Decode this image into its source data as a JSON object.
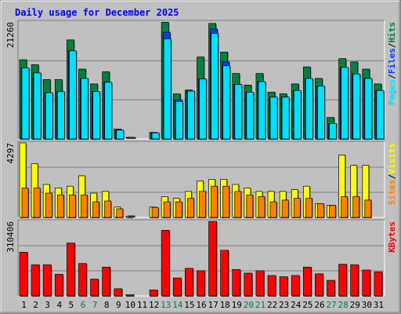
{
  "title": "Daily usage for December 2025",
  "colors": {
    "background": "#c0c0c0",
    "title": "#0000ff",
    "hits": "#008040",
    "files": "#0040ff",
    "pages": "#00e0ff",
    "visits": "#ffff00",
    "sites": "#ff8000",
    "kbytes": "#ff0000",
    "weekend_label": "#008040",
    "day_label": "#000000"
  },
  "chart_data": [
    {
      "type": "bar",
      "panel": "top",
      "ymax_label": "21260",
      "ylim": [
        0,
        21260
      ],
      "grid": true,
      "legend": [
        {
          "text": "Pages",
          "color": "#00e0ff"
        },
        {
          "text": "/",
          "color": "#000000"
        },
        {
          "text": "Files",
          "color": "#0040ff"
        },
        {
          "text": "/",
          "color": "#000000"
        },
        {
          "text": "Hits",
          "color": "#008040"
        }
      ],
      "categories": [
        "1",
        "2",
        "3",
        "4",
        "5",
        "6",
        "7",
        "8",
        "9",
        "10",
        "11",
        "12",
        "13",
        "14",
        "15",
        "16",
        "17",
        "18",
        "19",
        "20",
        "21",
        "22",
        "23",
        "24",
        "25",
        "26",
        "27",
        "28",
        "29",
        "30",
        "31"
      ],
      "series": [
        {
          "name": "Hits",
          "values": [
            14400,
            13500,
            10800,
            10800,
            18000,
            12700,
            10000,
            12200,
            1800,
            100,
            0,
            1200,
            21200,
            8200,
            8900,
            14900,
            21000,
            15800,
            11900,
            9800,
            11900,
            8500,
            8200,
            10000,
            13100,
            11000,
            3900,
            14600,
            14000,
            12700,
            10000
          ]
        },
        {
          "name": "Files",
          "values": [
            12900,
            12000,
            8400,
            8600,
            16000,
            11000,
            8600,
            10300,
            1600,
            80,
            0,
            1100,
            19400,
            7100,
            8700,
            10900,
            20000,
            14000,
            9900,
            8500,
            10400,
            7600,
            7600,
            8800,
            11000,
            9600,
            2800,
            13000,
            11800,
            11000,
            8800
          ]
        },
        {
          "name": "Pages",
          "values": [
            12900,
            12000,
            8400,
            8600,
            16000,
            11000,
            8600,
            10300,
            1600,
            80,
            0,
            1100,
            18200,
            6800,
            8700,
            10900,
            19200,
            13300,
            9900,
            8500,
            10400,
            7600,
            7600,
            8800,
            11000,
            9600,
            2800,
            13000,
            11800,
            11000,
            8800
          ]
        }
      ]
    },
    {
      "type": "bar",
      "panel": "middle",
      "ymax_label": "4297",
      "ylim": [
        0,
        4297
      ],
      "grid": true,
      "legend": [
        {
          "text": "Sites",
          "color": "#ff8000"
        },
        {
          "text": "/",
          "color": "#000000"
        },
        {
          "text": "Visits",
          "color": "#ffff00"
        }
      ],
      "categories": [
        "1",
        "2",
        "3",
        "4",
        "5",
        "6",
        "7",
        "8",
        "9",
        "10",
        "11",
        "12",
        "13",
        "14",
        "15",
        "16",
        "17",
        "18",
        "19",
        "20",
        "21",
        "22",
        "23",
        "24",
        "25",
        "26",
        "27",
        "28",
        "29",
        "30",
        "31"
      ],
      "series": [
        {
          "name": "Visits",
          "values": [
            4300,
            3100,
            1900,
            1700,
            1800,
            2400,
            1400,
            1500,
            600,
            60,
            0,
            600,
            1200,
            1100,
            1500,
            2100,
            2200,
            2200,
            1900,
            1700,
            1500,
            1500,
            1500,
            1600,
            1800,
            800,
            700,
            3600,
            3000,
            3000,
            0
          ]
        },
        {
          "name": "Sites",
          "values": [
            1700,
            1700,
            1400,
            1300,
            1300,
            1300,
            900,
            950,
            500,
            40,
            0,
            580,
            900,
            900,
            1100,
            1500,
            1800,
            1800,
            1500,
            1300,
            1200,
            900,
            1000,
            1100,
            1100,
            800,
            700,
            1200,
            1200,
            1000,
            0
          ]
        }
      ]
    },
    {
      "type": "bar",
      "panel": "bottom",
      "ymax_label": "310406",
      "ylim": [
        0,
        310406
      ],
      "grid": true,
      "legend": [
        {
          "text": "KBytes",
          "color": "#ff0000"
        }
      ],
      "categories": [
        "1",
        "2",
        "3",
        "4",
        "5",
        "6",
        "7",
        "8",
        "9",
        "10",
        "11",
        "12",
        "13",
        "14",
        "15",
        "16",
        "17",
        "18",
        "19",
        "20",
        "21",
        "22",
        "23",
        "24",
        "25",
        "26",
        "27",
        "28",
        "29",
        "30",
        "31"
      ],
      "series": [
        {
          "name": "KBytes",
          "values": [
            182000,
            130000,
            130000,
            90000,
            220000,
            135000,
            70000,
            120000,
            30000,
            5000,
            0,
            25000,
            273000,
            75000,
            115000,
            105000,
            310000,
            190000,
            110000,
            95000,
            105000,
            85000,
            80000,
            85000,
            120000,
            92000,
            65000,
            132000,
            130000,
            108000,
            100000
          ]
        }
      ]
    }
  ],
  "x_labels": [
    {
      "text": "1",
      "weekend": false
    },
    {
      "text": "2",
      "weekend": false
    },
    {
      "text": "3",
      "weekend": false
    },
    {
      "text": "4",
      "weekend": false
    },
    {
      "text": "5",
      "weekend": false
    },
    {
      "text": "6",
      "weekend": true
    },
    {
      "text": "7",
      "weekend": true
    },
    {
      "text": "8",
      "weekend": false
    },
    {
      "text": "9",
      "weekend": false
    },
    {
      "text": "10",
      "weekend": false
    },
    {
      "text": "11",
      "weekend": false
    },
    {
      "text": "12",
      "weekend": false
    },
    {
      "text": "13",
      "weekend": true
    },
    {
      "text": "14",
      "weekend": true
    },
    {
      "text": "15",
      "weekend": false
    },
    {
      "text": "16",
      "weekend": false
    },
    {
      "text": "17",
      "weekend": false
    },
    {
      "text": "18",
      "weekend": false
    },
    {
      "text": "19",
      "weekend": false
    },
    {
      "text": "20",
      "weekend": true
    },
    {
      "text": "21",
      "weekend": true
    },
    {
      "text": "22",
      "weekend": false
    },
    {
      "text": "23",
      "weekend": false
    },
    {
      "text": "24",
      "weekend": false
    },
    {
      "text": "25",
      "weekend": false
    },
    {
      "text": "26",
      "weekend": false
    },
    {
      "text": "27",
      "weekend": true
    },
    {
      "text": "28",
      "weekend": true
    },
    {
      "text": "29",
      "weekend": false
    },
    {
      "text": "30",
      "weekend": false
    },
    {
      "text": "31",
      "weekend": false
    }
  ]
}
